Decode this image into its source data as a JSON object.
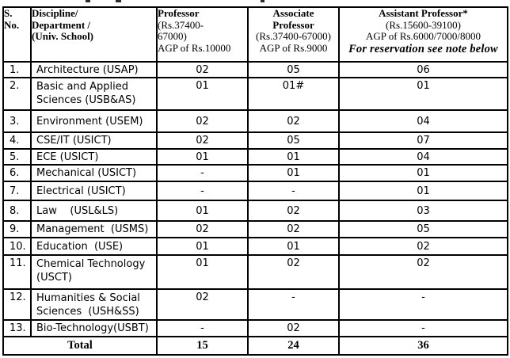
{
  "table": {
    "header": {
      "sno": [
        "S.",
        "No."
      ],
      "discipline": [
        "Discipline/",
        "Department /",
        "(Univ. School)"
      ],
      "professor": {
        "bold": [
          "Professor"
        ],
        "rest": [
          "(Rs.37400-",
          "67000)",
          "AGP of Rs.10000"
        ]
      },
      "associate": {
        "bold": [
          "Associate",
          "Professor"
        ],
        "rest": [
          "(Rs.37400-67000)",
          "AGP of Rs.9000"
        ]
      },
      "assistant": {
        "bold": [
          "Assistant Professor*"
        ],
        "rest": [
          "(Rs.15600-39100)",
          "AGP of Rs.6000/7000/8000"
        ],
        "note": "For reservation see note below"
      }
    },
    "rows": [
      {
        "sno": "1.",
        "discipline": [
          "Architecture (USAP)"
        ],
        "professor": "02",
        "associate": "05",
        "assistant": "06"
      },
      {
        "sno": "2.",
        "discipline": [
          "Basic and Applied",
          "Sciences (USB&AS)"
        ],
        "professor": "01",
        "associate": "01#",
        "assistant": "01"
      },
      {
        "sno": "3.",
        "discipline": [
          "Environment (USEM)"
        ],
        "professor": "02",
        "associate": "02",
        "assistant": "04"
      },
      {
        "sno": "4.",
        "discipline": [
          "CSE/IT (USICT)"
        ],
        "professor": "02",
        "associate": "05",
        "assistant": "07"
      },
      {
        "sno": "5.",
        "discipline": [
          "ECE (USICT)"
        ],
        "professor": "01",
        "associate": "01",
        "assistant": "04"
      },
      {
        "sno": "6.",
        "discipline": [
          "Mechanical (USICT)"
        ],
        "professor": "-",
        "associate": "01",
        "assistant": "01"
      },
      {
        "sno": "7.",
        "discipline": [
          "Electrical (USICT)"
        ],
        "professor": "-",
        "associate": "-",
        "assistant": "01"
      },
      {
        "sno": "8.",
        "discipline": [
          "Law    (USL&LS)"
        ],
        "professor": "01",
        "associate": "02",
        "assistant": "03"
      },
      {
        "sno": "9.",
        "discipline": [
          "Management  (USMS)"
        ],
        "professor": "02",
        "associate": "02",
        "assistant": "05"
      },
      {
        "sno": "10.",
        "discipline": [
          "Education  (USE)"
        ],
        "professor": "01",
        "associate": "01",
        "assistant": "02"
      },
      {
        "sno": "11.",
        "discipline": [
          "Chemical Technology",
          "(USCT)"
        ],
        "professor": "01",
        "associate": "02",
        "assistant": "02"
      },
      {
        "sno": "12.",
        "discipline": [
          "Humanities & Social",
          "Sciences  (USH&SS)"
        ],
        "professor": "02",
        "associate": "-",
        "assistant": "-"
      },
      {
        "sno": "13.",
        "discipline": [
          "Bio-Technology(USBT)"
        ],
        "professor": "-",
        "associate": "02",
        "assistant": "-"
      }
    ],
    "total": {
      "label": "Total",
      "professor": "15",
      "associate": "24",
      "assistant": "36"
    }
  }
}
